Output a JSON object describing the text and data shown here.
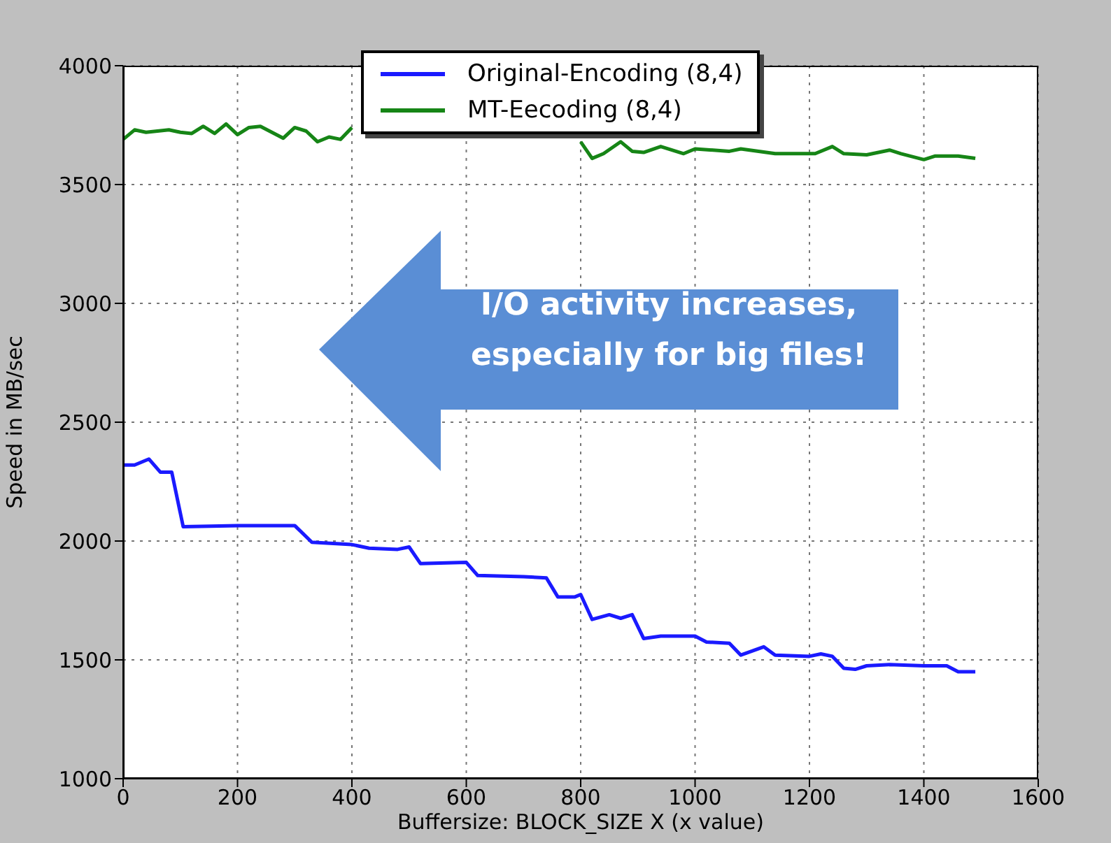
{
  "chart_data": {
    "type": "line",
    "xlabel": "Buffersize: BLOCK_SIZE X (x value)",
    "ylabel": "Speed in MB/sec",
    "xlim": [
      0,
      1600
    ],
    "xticks": [
      0,
      200,
      400,
      600,
      800,
      1000,
      1200,
      1400,
      1600
    ],
    "ylim": [
      1000,
      4000
    ],
    "yticks": [
      1000,
      1500,
      2000,
      2500,
      3000,
      3500,
      4000
    ],
    "grid": true,
    "legend": "top",
    "line_style": "solid",
    "marker": "none",
    "annotations": [
      "I/O activity increases, especially for big files!"
    ],
    "series": [
      {
        "name": "Original-Encoding (8,4)",
        "color": "#1a1aff",
        "x": [
          0,
          20,
          45,
          65,
          85,
          105,
          200,
          300,
          330,
          400,
          430,
          480,
          500,
          520,
          600,
          620,
          700,
          740,
          760,
          790,
          800,
          820,
          850,
          870,
          890,
          910,
          940,
          1000,
          1020,
          1060,
          1080,
          1120,
          1140,
          1200,
          1220,
          1240,
          1260,
          1280,
          1300,
          1340,
          1400,
          1440,
          1460,
          1490
        ],
        "values": [
          2320,
          2320,
          2345,
          2290,
          2290,
          2060,
          2065,
          2065,
          1995,
          1985,
          1970,
          1965,
          1975,
          1905,
          1910,
          1855,
          1850,
          1845,
          1765,
          1765,
          1775,
          1670,
          1690,
          1675,
          1690,
          1590,
          1600,
          1600,
          1575,
          1570,
          1520,
          1555,
          1520,
          1515,
          1525,
          1515,
          1465,
          1460,
          1475,
          1480,
          1475,
          1475,
          1450,
          1450
        ]
      },
      {
        "name": "MT-Eecoding (8,4)",
        "color": "#168516",
        "x": [
          0,
          20,
          40,
          60,
          80,
          100,
          120,
          140,
          160,
          180,
          200,
          220,
          240,
          260,
          280,
          300,
          320,
          340,
          360,
          380,
          400,
          420,
          800,
          820,
          840,
          870,
          890,
          910,
          940,
          980,
          1000,
          1060,
          1080,
          1140,
          1180,
          1210,
          1240,
          1260,
          1300,
          1340,
          1360,
          1400,
          1420,
          1460,
          1490
        ],
        "values": [
          3690,
          3730,
          3720,
          3725,
          3730,
          3720,
          3715,
          3745,
          3715,
          3755,
          3710,
          3740,
          3745,
          3720,
          3695,
          3740,
          3725,
          3680,
          3700,
          3690,
          3740,
          null,
          3680,
          3610,
          3630,
          3680,
          3640,
          3635,
          3660,
          3630,
          3650,
          3640,
          3650,
          3630,
          3630,
          3630,
          3660,
          3630,
          3625,
          3645,
          3630,
          3605,
          3620,
          3620,
          3610
        ]
      }
    ]
  }
}
